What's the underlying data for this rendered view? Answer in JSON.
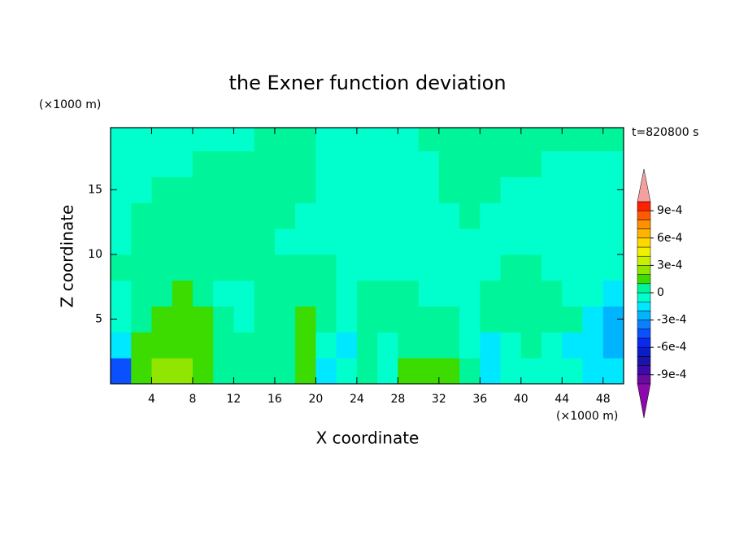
{
  "chart_data": {
    "type": "contour",
    "title": "the Exner function deviation",
    "xlabel": "X coordinate",
    "ylabel": "Z coordinate",
    "xunit": "(×1000 m)",
    "yunit": "(×1000 m)",
    "time_label": "t=820800 s",
    "xlim": [
      0,
      50
    ],
    "ylim": [
      0,
      19.8
    ],
    "xticks": [
      4,
      8,
      12,
      16,
      20,
      24,
      28,
      32,
      36,
      40,
      44,
      48
    ],
    "yticks": [
      5,
      10,
      15
    ],
    "x": [
      1,
      3,
      5,
      7,
      9,
      11,
      13,
      15,
      17,
      19,
      21,
      23,
      25,
      27,
      29,
      31,
      33,
      35,
      37,
      39,
      41,
      43,
      45,
      47,
      49
    ],
    "y": [
      1,
      3,
      5,
      7,
      9,
      11,
      13,
      15,
      17,
      19
    ],
    "z": [
      [
        -0.00045,
        0.00015,
        0.00025,
        0.00025,
        0.00015,
        5e-05,
        5e-05,
        5e-05,
        5e-05,
        0.00015,
        -0.00015,
        -5e-05,
        5e-05,
        -5e-05,
        0.00015,
        0.00015,
        0.00015,
        5e-05,
        -0.00015,
        -5e-05,
        -5e-05,
        -5e-05,
        -5e-05,
        -0.00015,
        -0.00015
      ],
      [
        -0.00015,
        0.00015,
        0.00015,
        0.00015,
        0.00015,
        5e-05,
        5e-05,
        5e-05,
        5e-05,
        0.00015,
        -5e-05,
        -0.00015,
        5e-05,
        -5e-05,
        5e-05,
        5e-05,
        5e-05,
        -5e-05,
        -0.00015,
        -5e-05,
        5e-05,
        -5e-05,
        -0.00015,
        -0.00015,
        -0.00025
      ],
      [
        -5e-05,
        5e-05,
        0.00015,
        0.00015,
        0.00015,
        5e-05,
        -5e-05,
        5e-05,
        5e-05,
        0.00015,
        5e-05,
        -5e-05,
        5e-05,
        5e-05,
        5e-05,
        5e-05,
        5e-05,
        -5e-05,
        5e-05,
        5e-05,
        5e-05,
        5e-05,
        5e-05,
        -0.00015,
        -0.00025
      ],
      [
        -5e-05,
        5e-05,
        5e-05,
        0.00015,
        5e-05,
        -5e-05,
        -5e-05,
        5e-05,
        5e-05,
        5e-05,
        5e-05,
        -5e-05,
        5e-05,
        5e-05,
        5e-05,
        -5e-05,
        -5e-05,
        -5e-05,
        5e-05,
        5e-05,
        5e-05,
        5e-05,
        -5e-05,
        -5e-05,
        -0.00015
      ],
      [
        5e-05,
        5e-05,
        5e-05,
        5e-05,
        5e-05,
        5e-05,
        5e-05,
        5e-05,
        5e-05,
        5e-05,
        5e-05,
        -5e-05,
        -5e-05,
        -5e-05,
        -5e-05,
        -5e-05,
        -5e-05,
        -5e-05,
        -5e-05,
        5e-05,
        5e-05,
        -5e-05,
        -5e-05,
        -5e-05,
        -5e-05
      ],
      [
        -5e-05,
        5e-05,
        5e-05,
        5e-05,
        5e-05,
        5e-05,
        5e-05,
        5e-05,
        -5e-05,
        -5e-05,
        -5e-05,
        -5e-05,
        -5e-05,
        -5e-05,
        -5e-05,
        -5e-05,
        -5e-05,
        -5e-05,
        -5e-05,
        -5e-05,
        -5e-05,
        -5e-05,
        -5e-05,
        -5e-05,
        -5e-05
      ],
      [
        -5e-05,
        5e-05,
        5e-05,
        5e-05,
        5e-05,
        5e-05,
        5e-05,
        5e-05,
        5e-05,
        -5e-05,
        -5e-05,
        -5e-05,
        -5e-05,
        -5e-05,
        -5e-05,
        -5e-05,
        -5e-05,
        5e-05,
        -5e-05,
        -5e-05,
        -5e-05,
        -5e-05,
        -5e-05,
        -5e-05,
        -5e-05
      ],
      [
        -5e-05,
        -5e-05,
        5e-05,
        5e-05,
        5e-05,
        5e-05,
        5e-05,
        5e-05,
        5e-05,
        5e-05,
        -5e-05,
        -5e-05,
        -5e-05,
        -5e-05,
        -5e-05,
        -5e-05,
        5e-05,
        5e-05,
        5e-05,
        -5e-05,
        -5e-05,
        -5e-05,
        -5e-05,
        -5e-05,
        -5e-05
      ],
      [
        -5e-05,
        -5e-05,
        -5e-05,
        -5e-05,
        5e-05,
        5e-05,
        5e-05,
        5e-05,
        5e-05,
        5e-05,
        -5e-05,
        -5e-05,
        -5e-05,
        -5e-05,
        -5e-05,
        -5e-05,
        5e-05,
        5e-05,
        5e-05,
        5e-05,
        5e-05,
        -5e-05,
        -5e-05,
        -5e-05,
        -5e-05
      ],
      [
        -5e-05,
        -5e-05,
        -5e-05,
        -5e-05,
        -5e-05,
        -5e-05,
        -5e-05,
        5e-05,
        5e-05,
        5e-05,
        -5e-05,
        -5e-05,
        -5e-05,
        -5e-05,
        -5e-05,
        5e-05,
        5e-05,
        5e-05,
        5e-05,
        5e-05,
        5e-05,
        5e-05,
        5e-05,
        5e-05,
        5e-05
      ]
    ],
    "levels": [
      -0.001,
      -0.0009,
      -0.0008,
      -0.0007,
      -0.0006,
      -0.0005,
      -0.0004,
      -0.0003,
      -0.0002,
      -0.0001,
      0,
      0.0001,
      0.0002,
      0.0003,
      0.0004,
      0.0005,
      0.0006,
      0.0007,
      0.0008,
      0.0009,
      0.001
    ],
    "colors": [
      "#6a0aa0",
      "#3c0aa8",
      "#1a14a8",
      "#0a1ec8",
      "#0a28f0",
      "#0a50ff",
      "#0a80ff",
      "#00b4ff",
      "#00e8ff",
      "#00ffcc",
      "#00f59a",
      "#3cdc00",
      "#90e600",
      "#c8f000",
      "#f0f000",
      "#ffd800",
      "#ffb400",
      "#ff9000",
      "#ff5a00",
      "#ff2000"
    ],
    "under_color": "#8a0aaa",
    "over_color": "#f4a0a0",
    "colorbar_ticks": [
      {
        "value": 0.0009,
        "label": "9e-4"
      },
      {
        "value": 0.0006,
        "label": "6e-4"
      },
      {
        "value": 0.0003,
        "label": "3e-4"
      },
      0,
      {
        "value": -0.0003,
        "label": "-3e-4"
      },
      {
        "value": -0.0006,
        "label": "-6e-4"
      },
      {
        "value": -0.0009,
        "label": "-9e-4"
      }
    ]
  }
}
